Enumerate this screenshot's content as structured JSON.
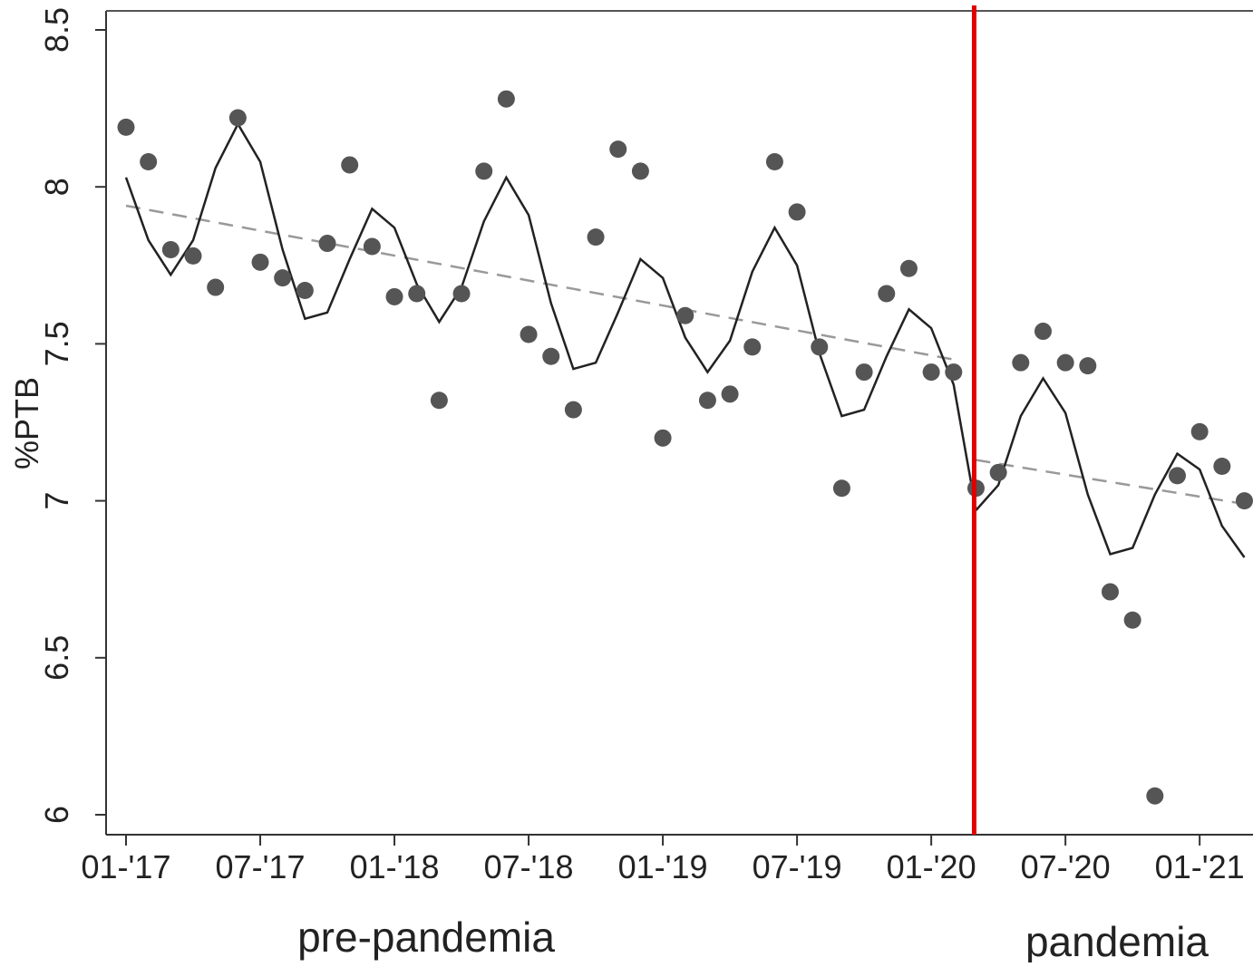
{
  "chart_data": {
    "type": "scatter",
    "title": "",
    "xlabel": "",
    "ylabel": "%PTB",
    "ylim": [
      6,
      8.5
    ],
    "xlim": [
      "2017-01",
      "2021-03"
    ],
    "grid": false,
    "yticks": [
      6,
      6.5,
      7,
      7.5,
      8,
      8.5
    ],
    "ytick_labels": [
      "6",
      "6.5",
      "7",
      "7.5",
      "8",
      "8.5"
    ],
    "xticks": [
      "2017-01",
      "2017-07",
      "2018-01",
      "2018-07",
      "2019-01",
      "2019-07",
      "2020-01",
      "2020-07",
      "2021-01"
    ],
    "xtick_labels": [
      "01-'17",
      "07-'17",
      "01-'18",
      "07-'18",
      "01-'19",
      "07-'19",
      "01-'20",
      "07-'20",
      "01-'21"
    ],
    "intervention": {
      "x": "2020-03",
      "color": "#e00000"
    },
    "period_labels": [
      "pre-pandemia",
      "pandemia"
    ],
    "series": [
      {
        "kind": "points",
        "color": "#555555",
        "x": [
          "2017-01",
          "2017-02",
          "2017-03",
          "2017-04",
          "2017-05",
          "2017-06",
          "2017-07",
          "2017-08",
          "2017-09",
          "2017-10",
          "2017-11",
          "2017-12",
          "2018-01",
          "2018-02",
          "2018-03",
          "2018-04",
          "2018-05",
          "2018-06",
          "2018-07",
          "2018-08",
          "2018-09",
          "2018-10",
          "2018-11",
          "2018-12",
          "2019-01",
          "2019-02",
          "2019-03",
          "2019-04",
          "2019-05",
          "2019-06",
          "2019-07",
          "2019-08",
          "2019-09",
          "2019-10",
          "2019-11",
          "2019-12",
          "2020-01",
          "2020-02",
          "2020-03",
          "2020-04",
          "2020-05",
          "2020-06",
          "2020-07",
          "2020-08",
          "2020-09",
          "2020-10",
          "2020-11",
          "2020-12",
          "2021-01",
          "2021-02",
          "2021-03"
        ],
        "values": [
          8.19,
          8.08,
          7.8,
          7.78,
          7.68,
          8.22,
          7.76,
          7.71,
          7.67,
          7.82,
          8.07,
          7.81,
          7.65,
          7.66,
          7.32,
          7.66,
          8.05,
          8.28,
          7.53,
          7.46,
          7.29,
          7.84,
          8.12,
          8.05,
          7.2,
          7.59,
          7.32,
          7.34,
          7.49,
          8.08,
          7.92,
          7.49,
          7.04,
          7.41,
          7.66,
          7.74,
          7.41,
          7.41,
          7.04,
          7.09,
          7.44,
          7.54,
          7.44,
          7.43,
          6.71,
          6.62,
          6.06,
          7.08,
          7.22,
          7.11,
          7.0
        ]
      },
      {
        "kind": "fitted",
        "color": "#222222",
        "x": [
          "2017-01",
          "2017-02",
          "2017-03",
          "2017-04",
          "2017-05",
          "2017-06",
          "2017-07",
          "2017-08",
          "2017-09",
          "2017-10",
          "2017-11",
          "2017-12",
          "2018-01",
          "2018-02",
          "2018-03",
          "2018-04",
          "2018-05",
          "2018-06",
          "2018-07",
          "2018-08",
          "2018-09",
          "2018-10",
          "2018-11",
          "2018-12",
          "2019-01",
          "2019-02",
          "2019-03",
          "2019-04",
          "2019-05",
          "2019-06",
          "2019-07",
          "2019-08",
          "2019-09",
          "2019-10",
          "2019-11",
          "2019-12",
          "2020-01",
          "2020-02",
          "2020-03",
          "2020-04",
          "2020-05",
          "2020-06",
          "2020-07",
          "2020-08",
          "2020-09",
          "2020-10",
          "2020-11",
          "2020-12",
          "2021-01",
          "2021-02",
          "2021-03"
        ],
        "values": [
          8.03,
          7.83,
          7.72,
          7.83,
          8.06,
          8.2,
          8.08,
          7.8,
          7.58,
          7.6,
          7.77,
          7.93,
          7.87,
          7.69,
          7.57,
          7.68,
          7.89,
          8.03,
          7.91,
          7.63,
          7.42,
          7.44,
          7.6,
          7.77,
          7.71,
          7.52,
          7.41,
          7.51,
          7.73,
          7.87,
          7.75,
          7.47,
          7.27,
          7.29,
          7.46,
          7.61,
          7.55,
          7.37,
          6.97,
          7.05,
          7.27,
          7.39,
          7.28,
          7.02,
          6.83,
          6.85,
          7.02,
          7.15,
          7.1,
          6.92,
          6.82
        ]
      },
      {
        "kind": "trend-pre",
        "color": "#999999",
        "x": [
          "2017-01",
          "2020-02"
        ],
        "values": [
          7.94,
          7.45
        ]
      },
      {
        "kind": "trend-post",
        "color": "#999999",
        "x": [
          "2020-03",
          "2021-03"
        ],
        "values": [
          7.13,
          6.99
        ]
      }
    ]
  }
}
